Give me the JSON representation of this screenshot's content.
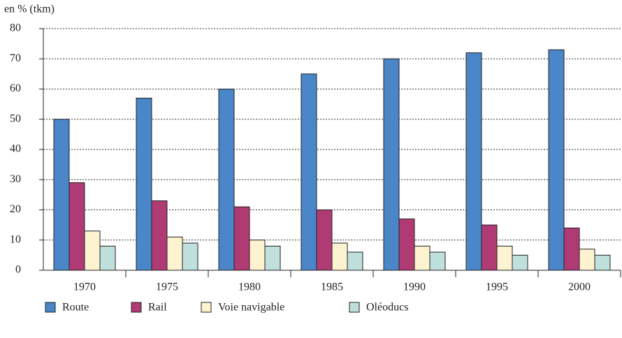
{
  "chart_data": {
    "type": "bar",
    "y_label": "en % (tkm)",
    "categories": [
      "1970",
      "1975",
      "1980",
      "1985",
      "1990",
      "1995",
      "2000"
    ],
    "series": [
      {
        "name": "Route",
        "color": "#4a86c8",
        "values": [
          50,
          57,
          60,
          65,
          70,
          72,
          73
        ]
      },
      {
        "name": "Rail",
        "color": "#b03a74",
        "values": [
          29,
          23,
          21,
          20,
          17,
          15,
          14
        ]
      },
      {
        "name": "Voie navigable",
        "color": "#fdf3d0",
        "values": [
          13,
          11,
          10,
          9,
          8,
          8,
          7
        ]
      },
      {
        "name": "Oléoducs",
        "color": "#bfe0dc",
        "values": [
          8,
          9,
          8,
          6,
          6,
          5,
          5
        ]
      }
    ],
    "ylim": [
      0,
      80
    ],
    "yticks": [
      0,
      10,
      20,
      30,
      40,
      50,
      60,
      70,
      80
    ],
    "grid": true
  }
}
